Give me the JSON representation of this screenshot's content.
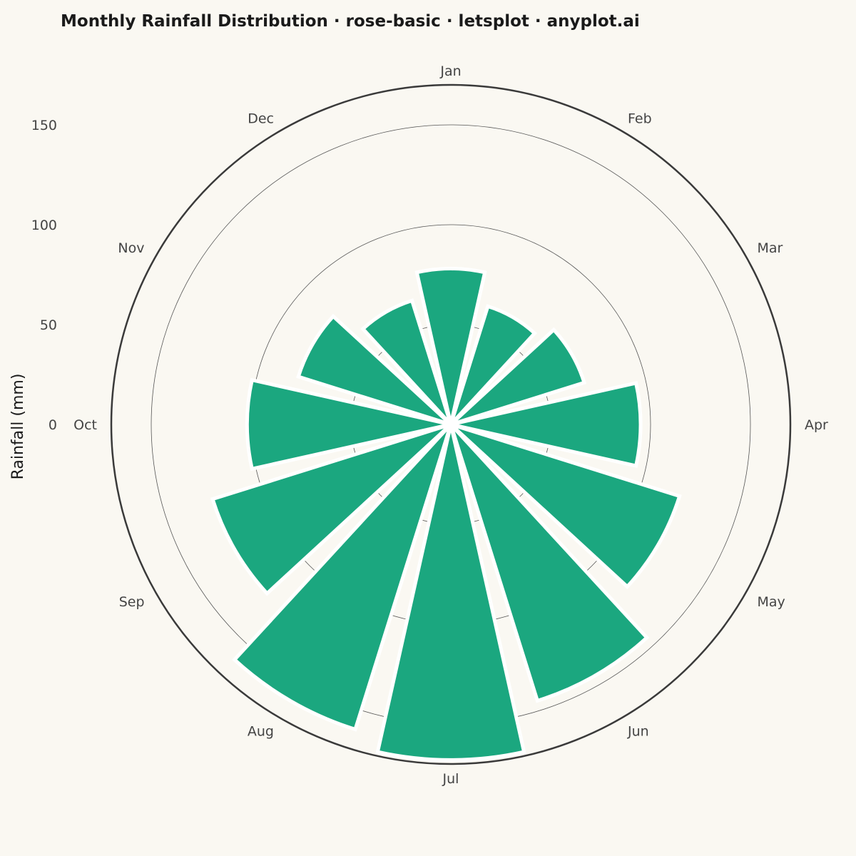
{
  "chart_data": {
    "type": "rose",
    "title": "Monthly Rainfall Distribution · rose-basic · letsplot · anyplot.ai",
    "ylabel": "Rainfall (mm)",
    "categories": [
      "Jan",
      "Feb",
      "Mar",
      "Apr",
      "May",
      "Jun",
      "Jul",
      "Aug",
      "Sep",
      "Oct",
      "Nov",
      "Dec"
    ],
    "values": [
      78,
      62,
      70,
      95,
      120,
      145,
      168,
      160,
      125,
      102,
      80,
      65
    ],
    "radial_ticks": [
      0,
      50,
      100,
      150
    ],
    "rmax": 170,
    "grid": true,
    "bar_color": "#1BA77F",
    "bar_edge_color": "#FFFFFF",
    "background": "#FAF8F2",
    "outline_color": "#3A3A3A"
  }
}
